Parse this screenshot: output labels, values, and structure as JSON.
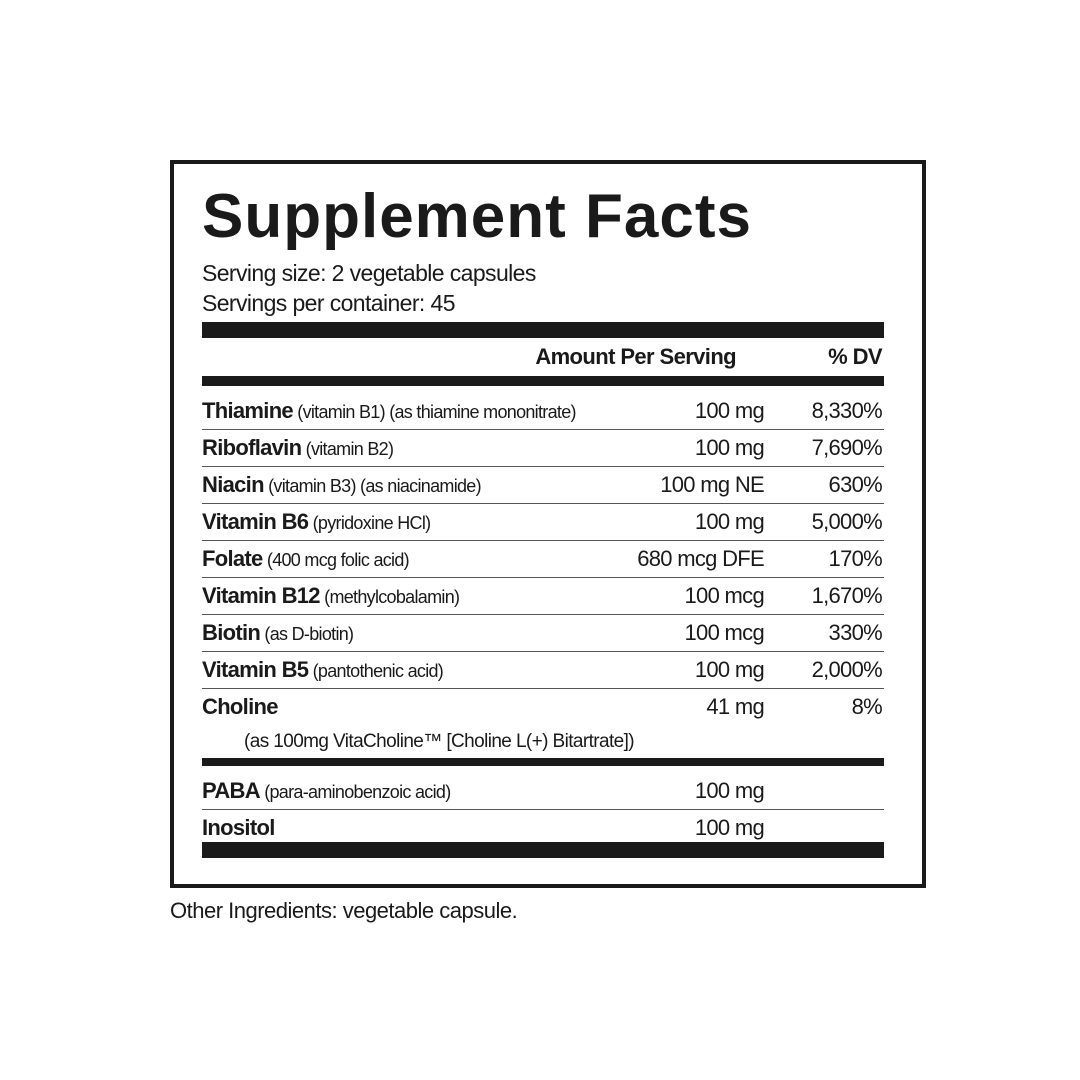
{
  "title": "Supplement Facts",
  "serving_size": "Serving size: 2 vegetable capsules",
  "servings_per_container": "Servings per container: 45",
  "header": {
    "amount": "Amount Per Serving",
    "dv": "% DV"
  },
  "rows": [
    {
      "name": "Thiamine",
      "detail": " (vitamin B1) (as thiamine mononitrate)",
      "amount": "100 mg",
      "dv": "8,330%"
    },
    {
      "name": "Riboflavin",
      "detail": " (vitamin B2)",
      "amount": "100 mg",
      "dv": "7,690%"
    },
    {
      "name": "Niacin",
      "detail": " (vitamin B3) (as niacinamide)",
      "amount": "100 mg NE",
      "dv": "630%"
    },
    {
      "name": "Vitamin B6",
      "detail": " (pyridoxine HCl)",
      "amount": "100 mg",
      "dv": "5,000%"
    },
    {
      "name": "Folate",
      "detail": " (400 mcg folic acid)",
      "amount": "680 mcg DFE",
      "dv": "170%"
    },
    {
      "name": "Vitamin B12",
      "detail": " (methylcobalamin)",
      "amount": "100 mcg",
      "dv": "1,670%"
    },
    {
      "name": "Biotin",
      "detail": " (as D-biotin)",
      "amount": "100 mcg",
      "dv": "330%"
    },
    {
      "name": "Vitamin B5",
      "detail": " (pantothenic acid)",
      "amount": "100 mg",
      "dv": "2,000%"
    },
    {
      "name": "Choline",
      "detail": "",
      "amount": "41 mg",
      "dv": "8%"
    }
  ],
  "choline_note": "(as 100mg VitaCholine™ [Choline L(+) Bitartrate])",
  "other_rows": [
    {
      "name": "PABA",
      "detail": " (para-aminobenzoic acid)",
      "amount": "100 mg",
      "dv": ""
    },
    {
      "name": "Inositol",
      "detail": "",
      "amount": "100 mg",
      "dv": ""
    }
  ],
  "other_ingredients": "Other Ingredients: vegetable capsule."
}
